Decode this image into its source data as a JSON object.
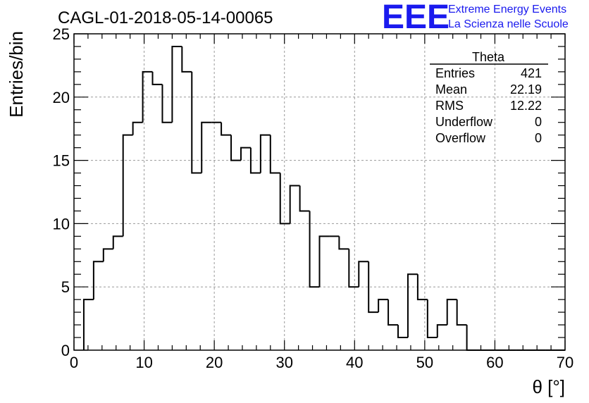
{
  "chart_data": {
    "type": "bar",
    "histogram": true,
    "title": "CAGL-01-2018-05-14-00065",
    "xlabel": "θ [°]",
    "ylabel": "Entries/bin",
    "xlim": [
      0,
      70
    ],
    "ylim": [
      0,
      25
    ],
    "bin_width": 1.4,
    "x_start": 1.4,
    "x_ticks": [
      0,
      10,
      20,
      30,
      40,
      50,
      60,
      70
    ],
    "y_ticks": [
      0,
      5,
      10,
      15,
      20,
      25
    ],
    "grid": true,
    "values": [
      4,
      7,
      8,
      9,
      17,
      18,
      22,
      21,
      18,
      24,
      22,
      14,
      18,
      18,
      17,
      15,
      16,
      14,
      17,
      14,
      10,
      13,
      11,
      5,
      9,
      9,
      8,
      5,
      7,
      3,
      4,
      2,
      1,
      6,
      4,
      1,
      2,
      4,
      2,
      0,
      0,
      0,
      0,
      0,
      0,
      0,
      0,
      0,
      0
    ],
    "stats": {
      "name": "Theta",
      "rows": [
        {
          "label": "Entries",
          "value": "421"
        },
        {
          "label": "Mean",
          "value": "22.19"
        },
        {
          "label": "RMS",
          "value": "12.22"
        },
        {
          "label": "Underflow",
          "value": "0"
        },
        {
          "label": "Overflow",
          "value": "0"
        }
      ]
    }
  },
  "logo": {
    "mark": "EEE",
    "line1": "Extreme Energy Events",
    "line2": "La Scienza nelle Scuole"
  },
  "colors": {
    "histogram_line": "#000000",
    "grid": "#999999",
    "logo": "#1a1aee"
  }
}
